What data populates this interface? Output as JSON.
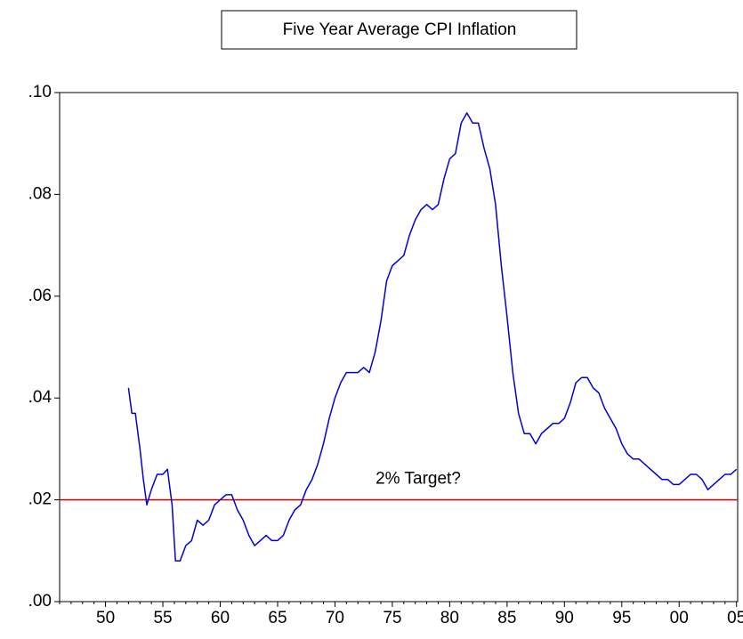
{
  "chart_data": {
    "type": "line",
    "title": "Five Year Average CPI Inflation",
    "annotation": "2% Target?",
    "reference_line": {
      "value": 0.02,
      "color": "#e00000"
    },
    "x": [
      1952.0,
      1952.3,
      1952.6,
      1953.0,
      1953.3,
      1953.6,
      1954.0,
      1954.5,
      1955.0,
      1955.4,
      1955.8,
      1956.1,
      1956.5,
      1957.0,
      1957.5,
      1958.0,
      1958.5,
      1959.0,
      1959.5,
      1960.0,
      1960.5,
      1961.0,
      1961.5,
      1962.0,
      1962.5,
      1963.0,
      1963.5,
      1964.0,
      1964.5,
      1965.0,
      1965.5,
      1966.0,
      1966.5,
      1967.0,
      1967.5,
      1968.0,
      1968.5,
      1969.0,
      1969.5,
      1970.0,
      1970.5,
      1971.0,
      1971.5,
      1972.0,
      1972.5,
      1973.0,
      1973.5,
      1974.0,
      1974.5,
      1975.0,
      1975.5,
      1976.0,
      1976.5,
      1977.0,
      1977.5,
      1978.0,
      1978.5,
      1979.0,
      1979.5,
      1980.0,
      1980.5,
      1981.0,
      1981.5,
      1982.0,
      1982.5,
      1983.0,
      1983.5,
      1984.0,
      1984.5,
      1985.0,
      1985.5,
      1986.0,
      1986.5,
      1987.0,
      1987.5,
      1988.0,
      1988.5,
      1989.0,
      1989.5,
      1990.0,
      1990.5,
      1991.0,
      1991.5,
      1992.0,
      1992.5,
      1993.0,
      1993.5,
      1994.0,
      1994.5,
      1995.0,
      1995.5,
      1996.0,
      1996.5,
      1997.0,
      1997.5,
      1998.0,
      1998.5,
      1999.0,
      1999.5,
      2000.0,
      2000.5,
      2001.0,
      2001.5,
      2002.0,
      2002.5,
      2003.0,
      2003.5,
      2004.0,
      2004.5,
      2005.0
    ],
    "series": [
      {
        "name": "CPI inflation",
        "color": "#0000dd",
        "values": [
          0.042,
          0.037,
          0.037,
          0.03,
          0.024,
          0.019,
          0.022,
          0.025,
          0.025,
          0.026,
          0.019,
          0.008,
          0.008,
          0.011,
          0.012,
          0.016,
          0.015,
          0.016,
          0.019,
          0.02,
          0.021,
          0.021,
          0.018,
          0.016,
          0.013,
          0.011,
          0.012,
          0.013,
          0.012,
          0.012,
          0.013,
          0.016,
          0.018,
          0.019,
          0.022,
          0.024,
          0.027,
          0.031,
          0.036,
          0.04,
          0.043,
          0.045,
          0.045,
          0.045,
          0.046,
          0.045,
          0.049,
          0.055,
          0.063,
          0.066,
          0.067,
          0.068,
          0.072,
          0.075,
          0.077,
          0.078,
          0.077,
          0.078,
          0.083,
          0.087,
          0.088,
          0.094,
          0.096,
          0.094,
          0.094,
          0.089,
          0.085,
          0.078,
          0.066,
          0.056,
          0.045,
          0.037,
          0.033,
          0.033,
          0.031,
          0.033,
          0.034,
          0.035,
          0.035,
          0.036,
          0.039,
          0.043,
          0.044,
          0.044,
          0.042,
          0.041,
          0.038,
          0.036,
          0.034,
          0.031,
          0.029,
          0.028,
          0.028,
          0.027,
          0.026,
          0.025,
          0.024,
          0.024,
          0.023,
          0.023,
          0.024,
          0.025,
          0.025,
          0.024,
          0.022,
          0.023,
          0.024,
          0.025,
          0.025,
          0.026
        ]
      }
    ],
    "xlim": [
      1946,
      2005.1
    ],
    "ylim": [
      0,
      0.1
    ],
    "xticks": [
      {
        "value": 1950,
        "label": "50"
      },
      {
        "value": 1955,
        "label": "55"
      },
      {
        "value": 1960,
        "label": "60"
      },
      {
        "value": 1965,
        "label": "65"
      },
      {
        "value": 1970,
        "label": "70"
      },
      {
        "value": 1975,
        "label": "75"
      },
      {
        "value": 1980,
        "label": "80"
      },
      {
        "value": 1985,
        "label": "85"
      },
      {
        "value": 1990,
        "label": "90"
      },
      {
        "value": 1995,
        "label": "95"
      },
      {
        "value": 2000,
        "label": "00"
      },
      {
        "value": 2005,
        "label": "05"
      }
    ],
    "yticks": [
      {
        "value": 0,
        "label": ".00"
      },
      {
        "value": 0.02,
        "label": ".02"
      },
      {
        "value": 0.04,
        "label": ".04"
      },
      {
        "value": 0.06,
        "label": ".06"
      },
      {
        "value": 0.08,
        "label": ".08"
      },
      {
        "value": 0.1,
        "label": ".10"
      }
    ]
  }
}
